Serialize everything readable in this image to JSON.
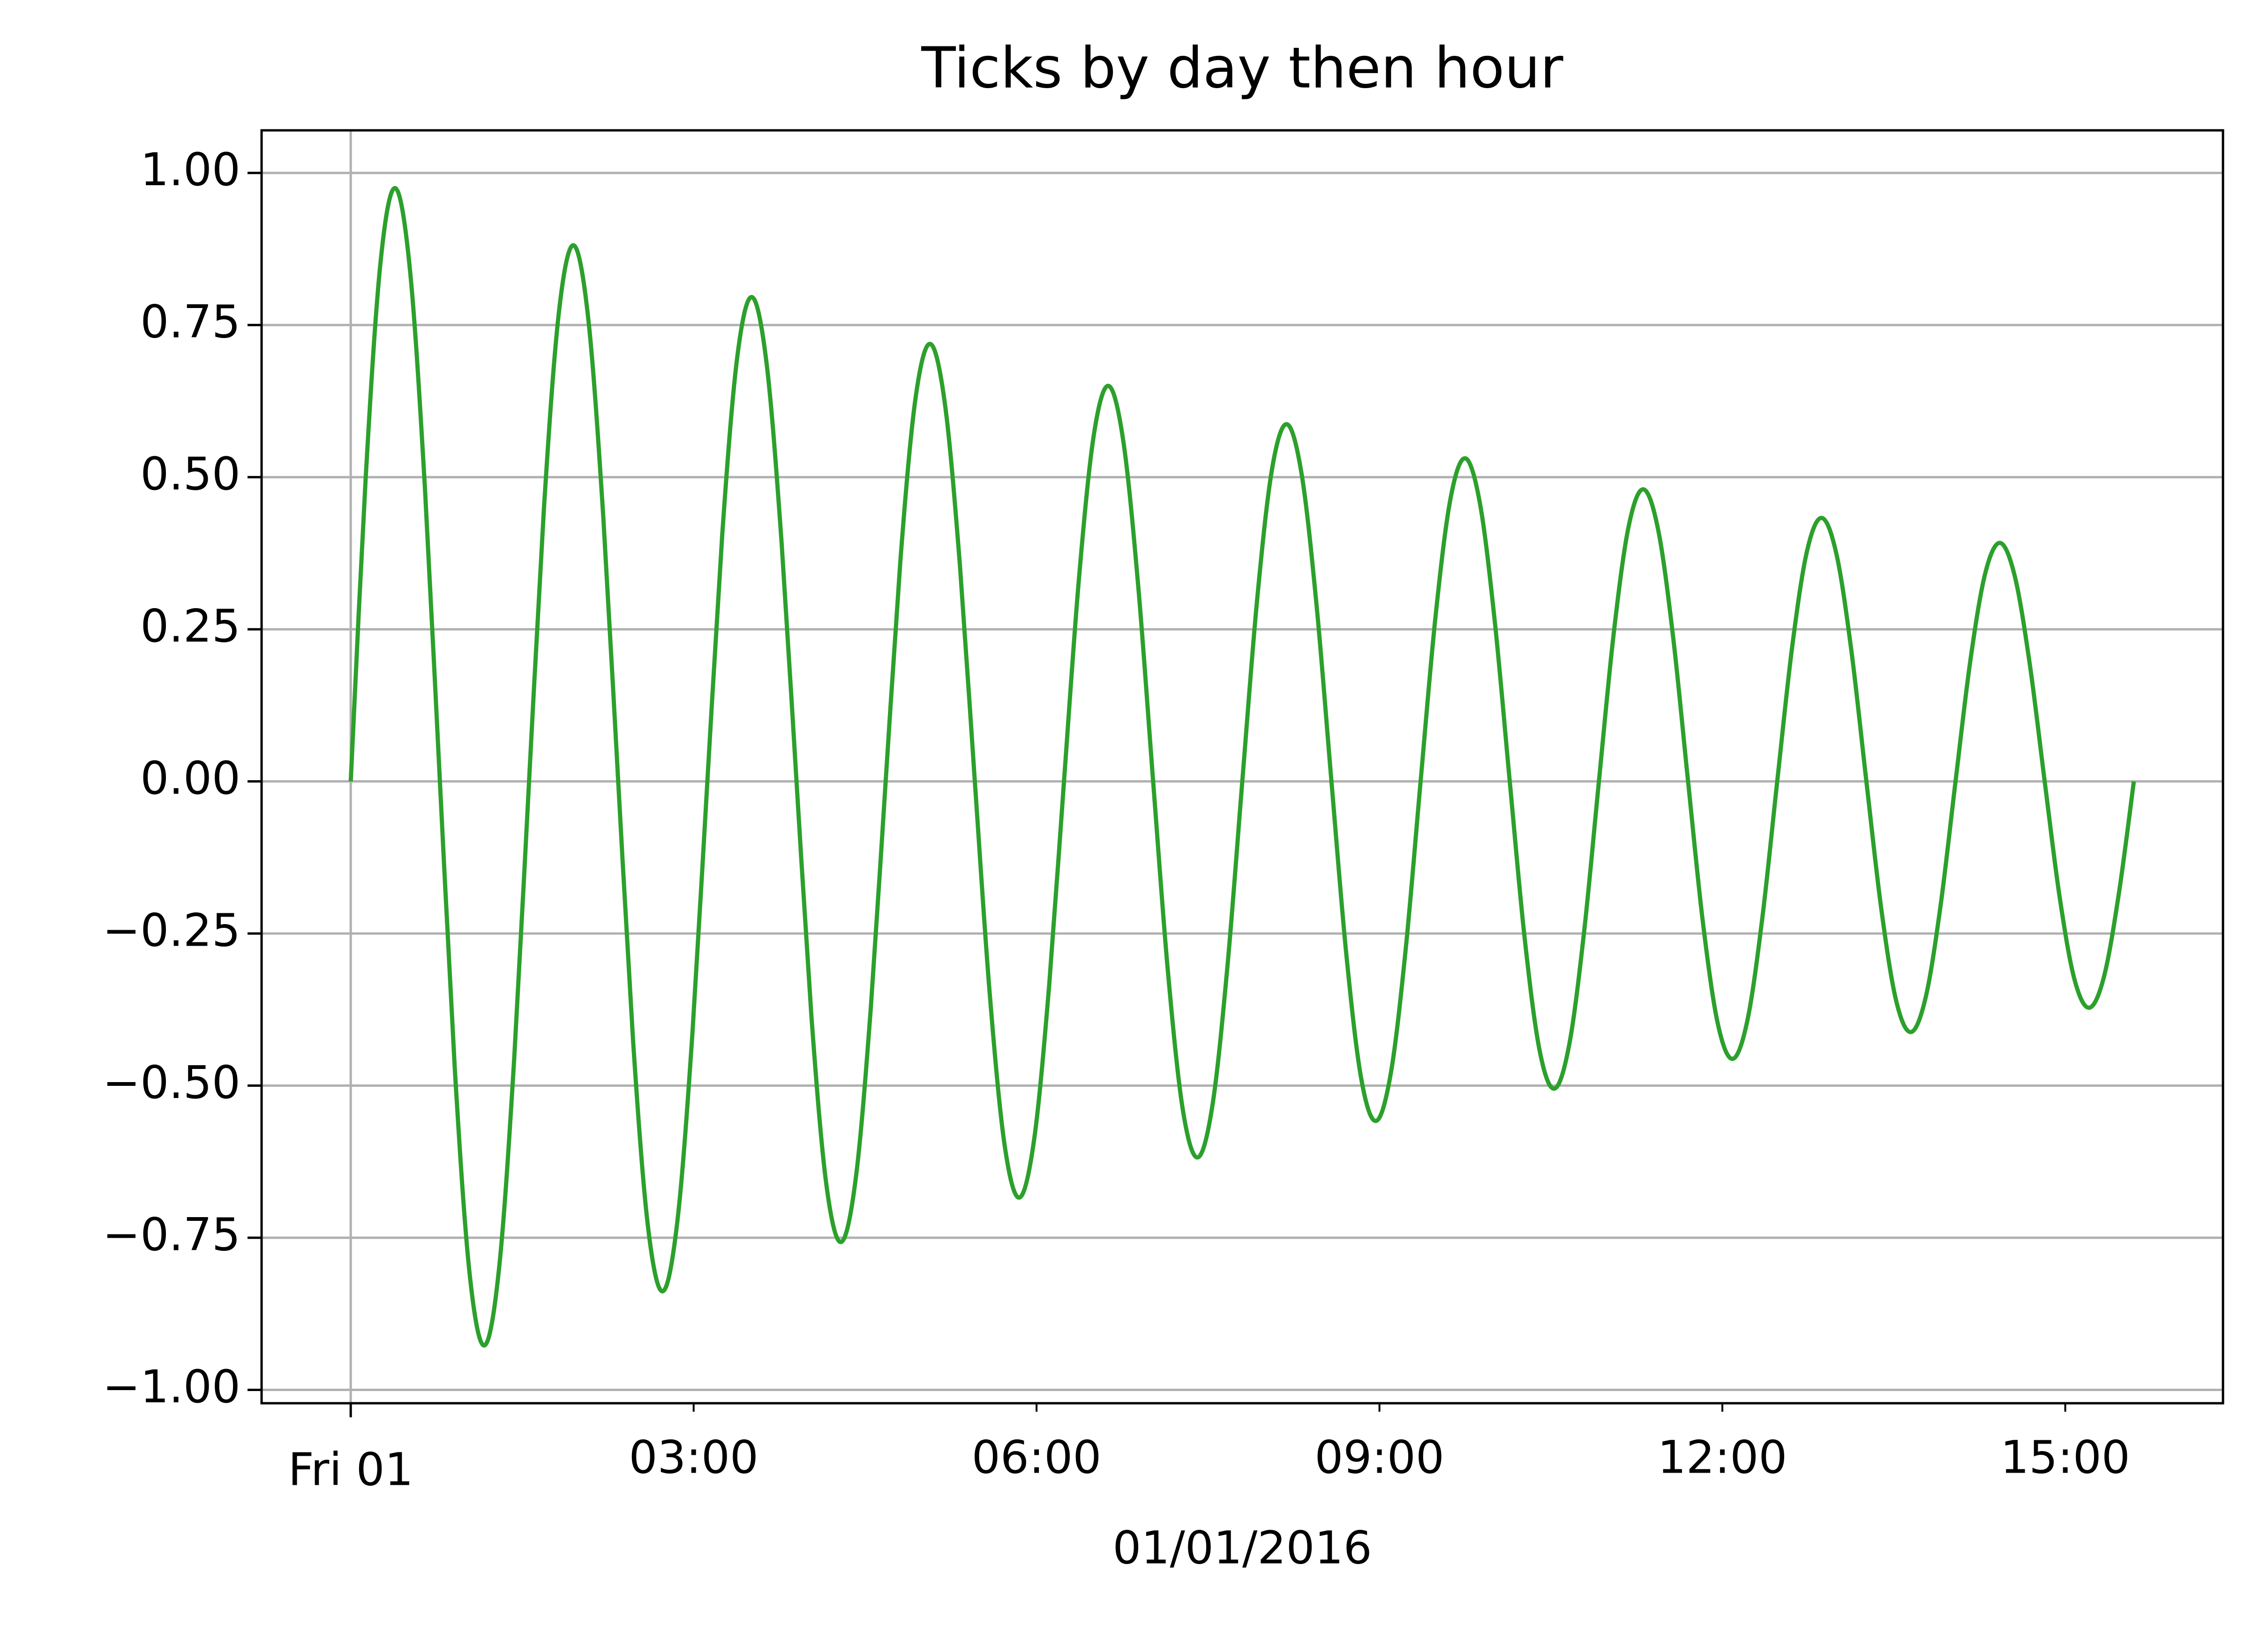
{
  "chart_data": {
    "type": "line",
    "title": "Ticks by day then hour",
    "xlabel": "01/01/2016",
    "x": [
      0,
      0.13,
      0.26,
      0.39,
      0.52,
      0.65,
      0.78,
      0.91,
      1.04,
      1.17,
      1.3,
      1.43,
      1.56,
      1.69,
      1.82,
      1.95,
      2.08,
      2.21,
      2.34,
      2.47,
      2.6,
      2.73,
      2.86,
      2.99,
      3.12,
      3.25,
      3.38,
      3.51,
      3.64,
      3.77,
      3.9,
      4.03,
      4.16,
      4.29,
      4.42,
      4.55,
      4.68,
      4.81,
      4.94,
      5.07,
      5.2,
      5.33,
      5.46,
      5.59,
      5.72,
      5.85,
      5.98,
      6.11,
      6.24,
      6.37,
      6.5,
      6.63,
      6.76,
      6.89,
      7.02,
      7.15,
      7.28,
      7.41,
      7.54,
      7.67,
      7.8,
      7.93,
      8.06,
      8.19,
      8.32,
      8.45,
      8.58,
      8.71,
      8.84,
      8.97,
      9.1,
      9.23,
      9.36,
      9.49,
      9.62,
      9.75,
      9.88,
      10.01,
      10.14,
      10.27,
      10.4,
      10.53,
      10.66,
      10.79,
      10.92,
      11.05,
      11.18,
      11.31,
      11.44,
      11.57,
      11.7,
      11.83,
      11.96,
      12.09,
      12.22,
      12.35,
      12.48,
      12.61,
      12.74,
      12.87,
      13,
      13.13,
      13.26,
      13.39,
      13.52,
      13.65,
      13.78,
      13.91,
      14.04,
      14.17,
      14.3,
      14.43,
      14.56,
      14.69,
      14.82,
      14.95,
      15.08,
      15.21,
      15.34,
      15.47,
      15.6
    ],
    "series": [
      {
        "color": "#2ca02c",
        "values": [
          0,
          0.496,
          0.852,
          0.975,
          0.837,
          0.479,
          0,
          -0.471,
          -0.809,
          -0.927,
          -0.796,
          -0.456,
          0,
          0.448,
          0.769,
          0.881,
          0.757,
          0.433,
          0,
          -0.426,
          -0.731,
          -0.838,
          -0.719,
          -0.412,
          0,
          0.405,
          0.695,
          0.796,
          0.684,
          0.391,
          0,
          -0.385,
          -0.661,
          -0.757,
          -0.65,
          -0.372,
          0,
          0.366,
          0.628,
          0.719,
          0.618,
          0.354,
          0,
          -0.348,
          -0.597,
          -0.684,
          -0.587,
          -0.336,
          0,
          0.331,
          0.568,
          0.65,
          0.558,
          0.32,
          0,
          -0.314,
          -0.54,
          -0.618,
          -0.531,
          -0.304,
          0,
          0.299,
          0.513,
          0.587,
          0.504,
          0.289,
          0,
          -0.284,
          -0.488,
          -0.558,
          -0.479,
          -0.275,
          0,
          0.27,
          0.463,
          0.531,
          0.456,
          0.261,
          0,
          -0.257,
          -0.441,
          -0.505,
          -0.433,
          -0.248,
          0,
          0.244,
          0.419,
          0.48,
          0.412,
          0.236,
          0,
          -0.232,
          -0.398,
          -0.456,
          -0.392,
          -0.224,
          0,
          0.22,
          0.378,
          0.433,
          0.372,
          0.213,
          0,
          -0.209,
          -0.36,
          -0.412,
          -0.354,
          -0.203,
          0,
          0.199,
          0.342,
          0.392,
          0.336,
          0.192,
          0,
          -0.189,
          -0.325,
          -0.372,
          -0.32,
          -0.183,
          0
        ]
      }
    ],
    "xlim": [
      -0.78,
      16.38
    ],
    "xticks": [
      {
        "value": 0,
        "label": "Fri 01"
      }
    ],
    "xminorticks": [
      {
        "value": 3,
        "label": "03:00"
      },
      {
        "value": 6,
        "label": "06:00"
      },
      {
        "value": 9,
        "label": "09:00"
      },
      {
        "value": 12,
        "label": "12:00"
      },
      {
        "value": 15,
        "label": "15:00"
      }
    ],
    "ylim": [
      -1.022,
      1.07
    ],
    "yticks": [
      {
        "value": -1,
        "label": "−1.00"
      },
      {
        "value": -0.75,
        "label": "−0.75"
      },
      {
        "value": -0.5,
        "label": "−0.50"
      },
      {
        "value": -0.25,
        "label": "−0.25"
      },
      {
        "value": 0,
        "label": "0.00"
      },
      {
        "value": 0.25,
        "label": "0.25"
      },
      {
        "value": 0.5,
        "label": "0.50"
      },
      {
        "value": 0.75,
        "label": "0.75"
      },
      {
        "value": 1,
        "label": "1.00"
      }
    ],
    "grid": true
  }
}
